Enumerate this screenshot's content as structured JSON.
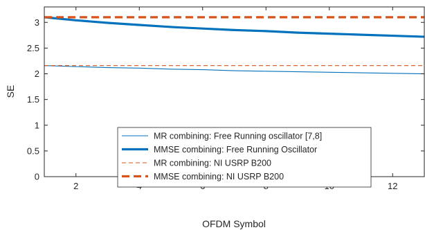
{
  "chart_data": {
    "type": "line",
    "title": "",
    "xlabel": "OFDM Symbol",
    "ylabel": "SE",
    "xlim": [
      1,
      13
    ],
    "ylim": [
      0,
      3.3
    ],
    "xticks": [
      2,
      4,
      6,
      8,
      10,
      12
    ],
    "yticks": [
      0,
      0.5,
      1,
      1.5,
      2,
      2.5,
      3
    ],
    "grid": false,
    "legend_position": "bottom-center",
    "series": [
      {
        "name": "MR combining: Free Running oscillator [7,8]",
        "color": "#0072bd",
        "style": "solid-thin",
        "x": [
          1,
          2,
          3,
          4,
          5,
          6,
          7,
          8,
          9,
          10,
          11,
          12,
          13
        ],
        "y": [
          2.16,
          2.14,
          2.12,
          2.11,
          2.09,
          2.08,
          2.06,
          2.05,
          2.04,
          2.03,
          2.02,
          2.01,
          2.0
        ]
      },
      {
        "name": "MMSE combining: Free Running Oscillator",
        "color": "#0072bd",
        "style": "solid-thick",
        "x": [
          1,
          2,
          3,
          4,
          5,
          6,
          7,
          8,
          9,
          10,
          11,
          12,
          13
        ],
        "y": [
          3.1,
          3.04,
          2.99,
          2.95,
          2.91,
          2.88,
          2.85,
          2.83,
          2.8,
          2.78,
          2.76,
          2.74,
          2.72
        ]
      },
      {
        "name": "MR combining: NI USRP B200",
        "color": "#d95319",
        "style": "dashed-thin",
        "x": [
          1,
          13
        ],
        "y": [
          2.16,
          2.16
        ]
      },
      {
        "name": "MMSE combining: NI USRP B200",
        "color": "#d95319",
        "style": "dashed-thick",
        "x": [
          1,
          13
        ],
        "y": [
          3.1,
          3.1
        ]
      }
    ]
  }
}
